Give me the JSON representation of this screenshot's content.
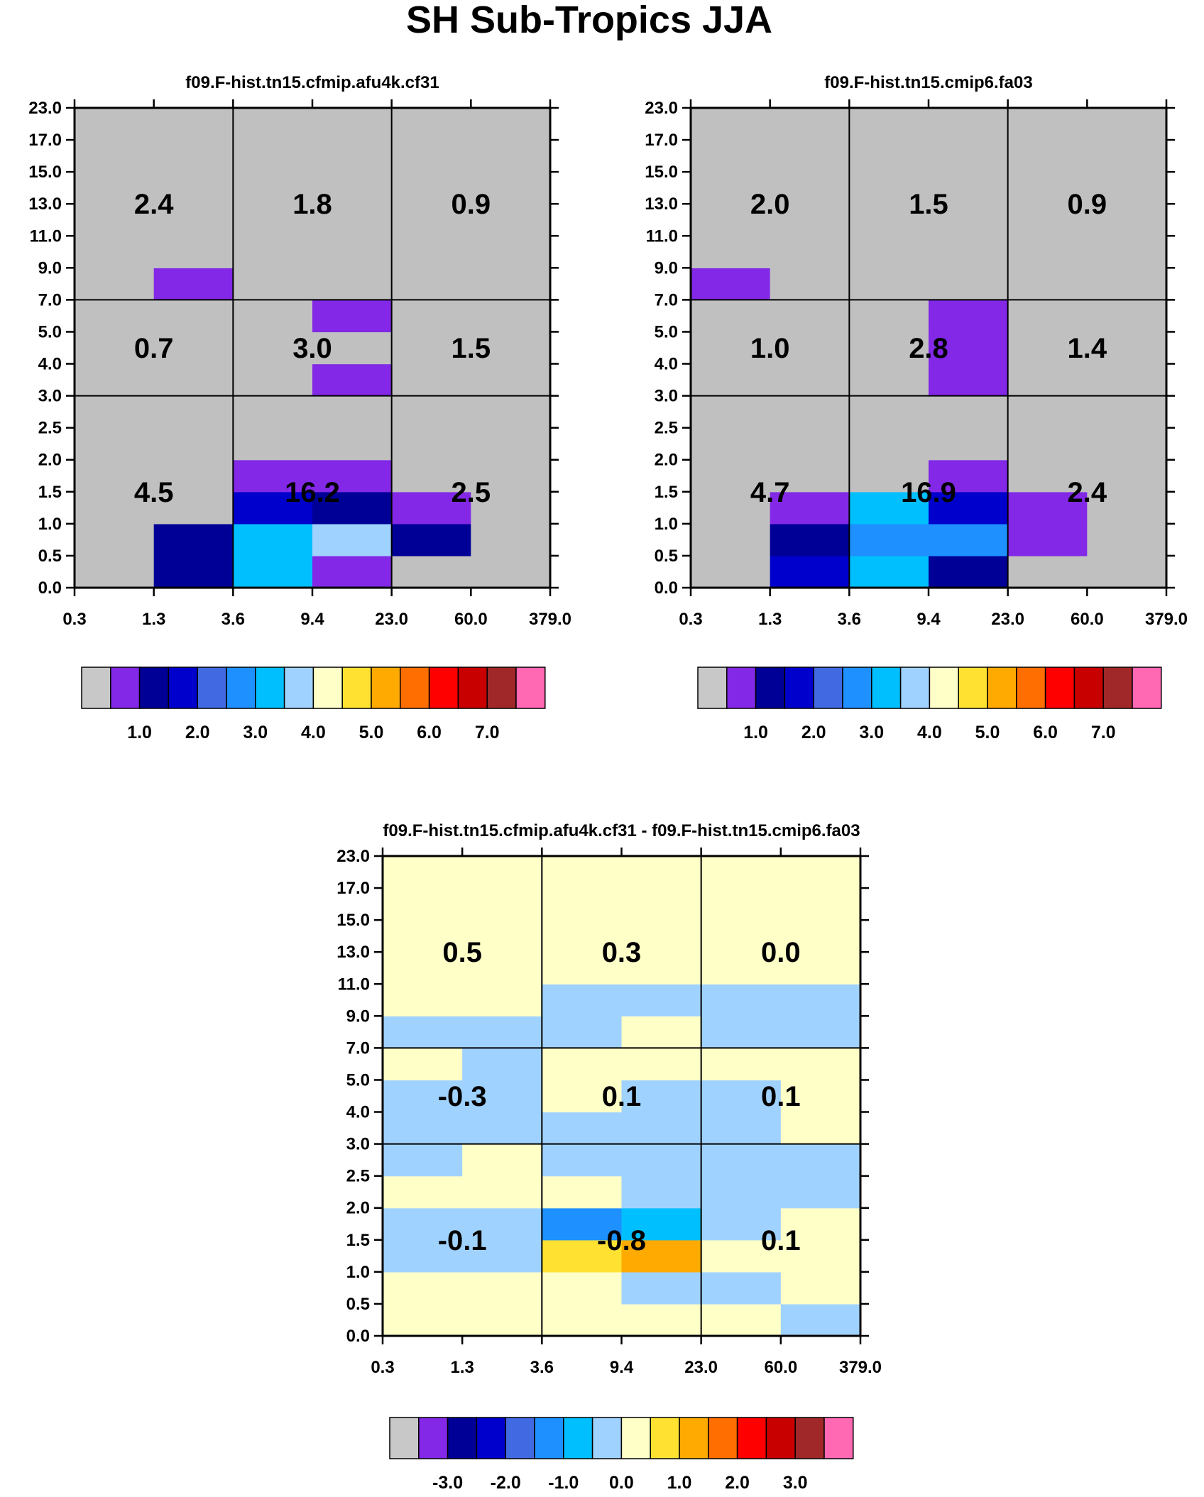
{
  "figure_title": "SH Sub-Tropics JJA",
  "colors": {
    "missing": "#c0c0c0",
    "palette_abs": [
      "#c8c8c8",
      "#8228e6",
      "#000096",
      "#0000cd",
      "#4169e1",
      "#1e90ff",
      "#00bfff",
      "#a0d2ff",
      "#ffffc8",
      "#ffe132",
      "#ffaa00",
      "#ff6e00",
      "#ff0000",
      "#c80000",
      "#a02828",
      "#ff69b4"
    ],
    "palette_diff": [
      "#c8c8c8",
      "#8228e6",
      "#000096",
      "#0000cd",
      "#4169e1",
      "#1e90ff",
      "#00bfff",
      "#a0d2ff",
      "#ffffc8",
      "#ffe132",
      "#ffaa00",
      "#ff6e00",
      "#ff0000",
      "#c80000",
      "#a02828",
      "#ff69b4"
    ]
  },
  "chart_data": [
    {
      "type": "heatmap",
      "name": "model-a",
      "title": "f09.F-hist.tn15.cfmip.afu4k.cf31",
      "x_tick_labels": [
        "0.3",
        "1.3",
        "3.6",
        "9.4",
        "23.0",
        "60.0",
        "379.0"
      ],
      "y_tick_labels": [
        "0.0",
        "0.5",
        "1.0",
        "1.5",
        "2.0",
        "2.5",
        "3.0",
        "4.0",
        "5.0",
        "7.0",
        "9.0",
        "11.0",
        "13.0",
        "15.0",
        "17.0",
        "23.0"
      ],
      "color_index_grid_bottom_to_top": [
        [
          0,
          2,
          6,
          1,
          0,
          0
        ],
        [
          0,
          2,
          6,
          7,
          2,
          0
        ],
        [
          0,
          0,
          3,
          2,
          1,
          0
        ],
        [
          0,
          0,
          1,
          1,
          0,
          0
        ],
        [
          0,
          0,
          0,
          0,
          0,
          0
        ],
        [
          0,
          0,
          0,
          0,
          0,
          0
        ],
        [
          0,
          0,
          0,
          1,
          0,
          0
        ],
        [
          0,
          0,
          0,
          0,
          0,
          0
        ],
        [
          0,
          0,
          0,
          1,
          0,
          0
        ],
        [
          0,
          1,
          0,
          0,
          0,
          0
        ],
        [
          0,
          0,
          0,
          0,
          0,
          0
        ],
        [
          0,
          0,
          0,
          0,
          0,
          0
        ],
        [
          0,
          0,
          0,
          0,
          0,
          0
        ],
        [
          0,
          0,
          0,
          0,
          0,
          0
        ],
        [
          0,
          0,
          0,
          0,
          0,
          0
        ]
      ],
      "block_sums": [
        [
          "2.4",
          "1.8",
          "0.9"
        ],
        [
          "0.7",
          "3.0",
          "1.5"
        ],
        [
          "4.5",
          "16.2",
          "2.5"
        ]
      ],
      "colorbar_labels": [
        "1.0",
        "2.0",
        "3.0",
        "4.0",
        "5.0",
        "6.0",
        "7.0"
      ]
    },
    {
      "type": "heatmap",
      "name": "model-b",
      "title": "f09.F-hist.tn15.cmip6.fa03",
      "x_tick_labels": [
        "0.3",
        "1.3",
        "3.6",
        "9.4",
        "23.0",
        "60.0",
        "379.0"
      ],
      "y_tick_labels": [
        "0.0",
        "0.5",
        "1.0",
        "1.5",
        "2.0",
        "2.5",
        "3.0",
        "4.0",
        "5.0",
        "7.0",
        "9.0",
        "11.0",
        "13.0",
        "15.0",
        "17.0",
        "23.0"
      ],
      "color_index_grid_bottom_to_top": [
        [
          0,
          3,
          6,
          2,
          0,
          0
        ],
        [
          0,
          2,
          5,
          5,
          1,
          0
        ],
        [
          0,
          1,
          6,
          3,
          1,
          0
        ],
        [
          0,
          0,
          0,
          1,
          0,
          0
        ],
        [
          0,
          0,
          0,
          0,
          0,
          0
        ],
        [
          0,
          0,
          0,
          0,
          0,
          0
        ],
        [
          0,
          0,
          0,
          1,
          0,
          0
        ],
        [
          0,
          0,
          0,
          1,
          0,
          0
        ],
        [
          0,
          0,
          0,
          1,
          0,
          0
        ],
        [
          1,
          0,
          0,
          0,
          0,
          0
        ],
        [
          0,
          0,
          0,
          0,
          0,
          0
        ],
        [
          0,
          0,
          0,
          0,
          0,
          0
        ],
        [
          0,
          0,
          0,
          0,
          0,
          0
        ],
        [
          0,
          0,
          0,
          0,
          0,
          0
        ],
        [
          0,
          0,
          0,
          0,
          0,
          0
        ]
      ],
      "block_sums": [
        [
          "2.0",
          "1.5",
          "0.9"
        ],
        [
          "1.0",
          "2.8",
          "1.4"
        ],
        [
          "4.7",
          "16.9",
          "2.4"
        ]
      ],
      "colorbar_labels": [
        "1.0",
        "2.0",
        "3.0",
        "4.0",
        "5.0",
        "6.0",
        "7.0"
      ]
    },
    {
      "type": "heatmap",
      "name": "difference",
      "title": "f09.F-hist.tn15.cfmip.afu4k.cf31 - f09.F-hist.tn15.cmip6.fa03",
      "x_tick_labels": [
        "0.3",
        "1.3",
        "3.6",
        "9.4",
        "23.0",
        "60.0",
        "379.0"
      ],
      "y_tick_labels": [
        "0.0",
        "0.5",
        "1.0",
        "1.5",
        "2.0",
        "2.5",
        "3.0",
        "4.0",
        "5.0",
        "7.0",
        "9.0",
        "11.0",
        "13.0",
        "15.0",
        "17.0",
        "23.0"
      ],
      "color_index_grid_bottom_to_top": [
        [
          8,
          8,
          8,
          8,
          8,
          7
        ],
        [
          8,
          8,
          8,
          7,
          7,
          8
        ],
        [
          7,
          7,
          9,
          10,
          8,
          8
        ],
        [
          7,
          7,
          5,
          6,
          7,
          8
        ],
        [
          8,
          8,
          8,
          7,
          7,
          7
        ],
        [
          7,
          8,
          7,
          7,
          7,
          7
        ],
        [
          7,
          7,
          7,
          7,
          7,
          8
        ],
        [
          7,
          7,
          8,
          7,
          7,
          8
        ],
        [
          8,
          7,
          8,
          8,
          8,
          8
        ],
        [
          7,
          7,
          7,
          8,
          7,
          7
        ],
        [
          8,
          8,
          7,
          7,
          7,
          7
        ],
        [
          8,
          8,
          8,
          8,
          8,
          8
        ],
        [
          8,
          8,
          8,
          8,
          8,
          8
        ],
        [
          8,
          8,
          8,
          8,
          8,
          8
        ],
        [
          8,
          8,
          8,
          8,
          8,
          8
        ]
      ],
      "block_sums": [
        [
          "0.5",
          "0.3",
          "0.0"
        ],
        [
          "-0.3",
          "0.1",
          "0.1"
        ],
        [
          "-0.1",
          "-0.8",
          "0.1"
        ]
      ],
      "colorbar_labels": [
        "-3.0",
        "-2.0",
        "-1.0",
        "0.0",
        "1.0",
        "2.0",
        "3.0"
      ]
    }
  ]
}
